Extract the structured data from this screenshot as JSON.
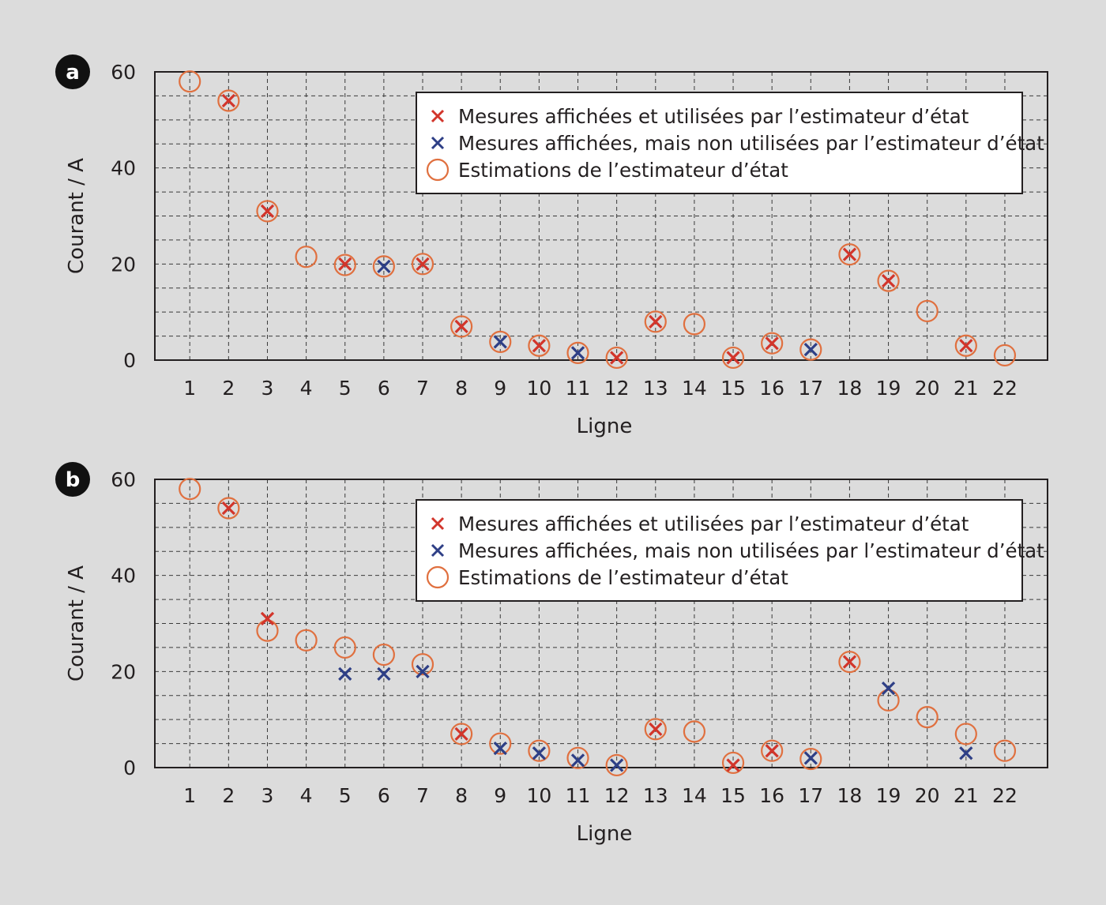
{
  "colors": {
    "background": "#dcdcdc",
    "used_measure": "#d2352b",
    "unused_measure": "#2e3f86",
    "estimate": "#e0703f",
    "axis": "#231f20",
    "badge": "#111111"
  },
  "chart_data": [
    {
      "panel": "a",
      "type": "scatter",
      "xlabel": "Ligne",
      "ylabel": "Courant / A",
      "xticks": [
        "1",
        "2",
        "3",
        "4",
        "5",
        "6",
        "7",
        "8",
        "9",
        "10",
        "11",
        "12",
        "13",
        "14",
        "15",
        "16",
        "17",
        "18",
        "19",
        "20",
        "21",
        "22"
      ],
      "yticks": [
        "0",
        "20",
        "40",
        "60"
      ],
      "xlim": [
        0.1,
        23.1
      ],
      "ylim": [
        0,
        60
      ],
      "grid": true,
      "legend_position": "top-right",
      "series": [
        {
          "name": "Mesures affichées et utilisées par l’estimateur d’état",
          "marker": "x",
          "color": "#d2352b",
          "points": [
            [
              2,
              54
            ],
            [
              3,
              31
            ],
            [
              5,
              20
            ],
            [
              7,
              20
            ],
            [
              8,
              7
            ],
            [
              10,
              3
            ],
            [
              12,
              0.5
            ],
            [
              13,
              8
            ],
            [
              15,
              0.5
            ],
            [
              16,
              3.5
            ],
            [
              18,
              22
            ],
            [
              19,
              16.5
            ],
            [
              21,
              3
            ]
          ]
        },
        {
          "name": "Mesures affichées, mais non utilisées par l’estimateur d’état",
          "marker": "x",
          "color": "#2e3f86",
          "points": [
            [
              6,
              19.5
            ],
            [
              9,
              3.8
            ],
            [
              11,
              1.5
            ],
            [
              17,
              2.2
            ]
          ]
        },
        {
          "name": "Estimations de l’estimateur d’état",
          "marker": "o",
          "color": "#e0703f",
          "points": [
            [
              1,
              58
            ],
            [
              2,
              54
            ],
            [
              3,
              31
            ],
            [
              4,
              21.5
            ],
            [
              5,
              19.8
            ],
            [
              6,
              19.5
            ],
            [
              7,
              20
            ],
            [
              8,
              7
            ],
            [
              9,
              3.8
            ],
            [
              10,
              3
            ],
            [
              11,
              1.5
            ],
            [
              12,
              0.5
            ],
            [
              13,
              8
            ],
            [
              14,
              7.5
            ],
            [
              15,
              0.5
            ],
            [
              16,
              3.5
            ],
            [
              17,
              2.2
            ],
            [
              18,
              22
            ],
            [
              19,
              16.5
            ],
            [
              20,
              10.2
            ],
            [
              21,
              3
            ],
            [
              22,
              1
            ]
          ]
        }
      ]
    },
    {
      "panel": "b",
      "type": "scatter",
      "xlabel": "Ligne",
      "ylabel": "Courant / A",
      "xticks": [
        "1",
        "2",
        "3",
        "4",
        "5",
        "6",
        "7",
        "8",
        "9",
        "10",
        "11",
        "12",
        "13",
        "14",
        "15",
        "16",
        "17",
        "18",
        "19",
        "20",
        "21",
        "22"
      ],
      "yticks": [
        "0",
        "20",
        "40",
        "60"
      ],
      "xlim": [
        0.1,
        23.1
      ],
      "ylim": [
        0,
        60
      ],
      "grid": true,
      "legend_position": "top-right",
      "series": [
        {
          "name": "Mesures affichées et utilisées par l’estimateur d’état",
          "marker": "x",
          "color": "#d2352b",
          "points": [
            [
              2,
              54
            ],
            [
              3,
              31
            ],
            [
              8,
              7
            ],
            [
              13,
              8
            ],
            [
              15,
              0.5
            ],
            [
              16,
              3.5
            ],
            [
              18,
              22
            ]
          ]
        },
        {
          "name": "Mesures affichées, mais non utilisées par l’estimateur d’état",
          "marker": "x",
          "color": "#2e3f86",
          "points": [
            [
              5,
              19.5
            ],
            [
              6,
              19.5
            ],
            [
              7,
              20
            ],
            [
              9,
              4
            ],
            [
              10,
              3
            ],
            [
              11,
              1.5
            ],
            [
              12,
              0.5
            ],
            [
              17,
              2
            ],
            [
              19,
              16.5
            ],
            [
              21,
              3
            ]
          ]
        },
        {
          "name": "Estimations de l’estimateur d’état",
          "marker": "o",
          "color": "#e0703f",
          "points": [
            [
              1,
              58
            ],
            [
              2,
              54
            ],
            [
              3,
              28.5
            ],
            [
              4,
              26.5
            ],
            [
              5,
              25
            ],
            [
              6,
              23.5
            ],
            [
              7,
              21.5
            ],
            [
              8,
              7
            ],
            [
              9,
              5
            ],
            [
              10,
              3.5
            ],
            [
              11,
              2
            ],
            [
              12,
              0.5
            ],
            [
              13,
              8
            ],
            [
              14,
              7.5
            ],
            [
              15,
              1
            ],
            [
              16,
              3.5
            ],
            [
              17,
              1.8
            ],
            [
              18,
              22
            ],
            [
              19,
              14
            ],
            [
              20,
              10.5
            ],
            [
              21,
              7
            ],
            [
              22,
              3.5
            ]
          ]
        }
      ]
    }
  ]
}
